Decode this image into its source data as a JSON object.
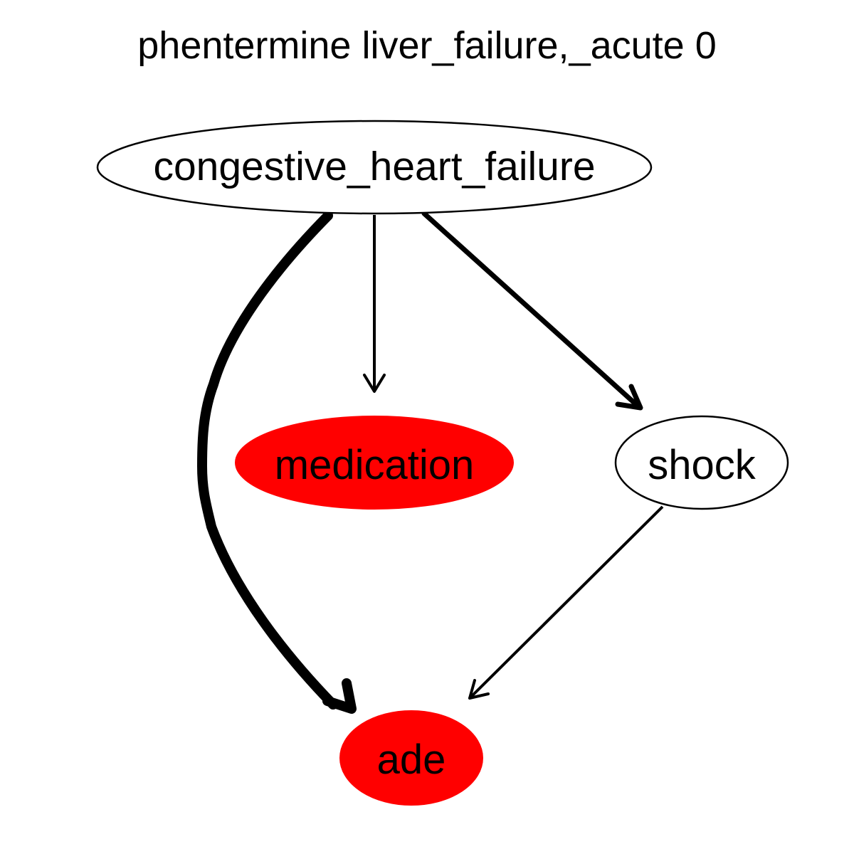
{
  "title": "phentermine liver_failure,_acute 0",
  "nodes": {
    "congestive_heart_failure": {
      "label": "congestive_heart_failure",
      "fill": "#ffffff"
    },
    "medication": {
      "label": "medication",
      "fill": "#ff0000"
    },
    "shock": {
      "label": "shock",
      "fill": "#ffffff"
    },
    "ade": {
      "label": "ade",
      "fill": "#ff0000"
    }
  },
  "edges": [
    {
      "from": "congestive_heart_failure",
      "to": "ade",
      "weight": "heavy"
    },
    {
      "from": "congestive_heart_failure",
      "to": "medication",
      "weight": "thin"
    },
    {
      "from": "congestive_heart_failure",
      "to": "shock",
      "weight": "medium"
    },
    {
      "from": "shock",
      "to": "ade",
      "weight": "thin"
    }
  ],
  "colors": {
    "highlight": "#ff0000",
    "stroke": "#000000",
    "background": "#ffffff"
  }
}
